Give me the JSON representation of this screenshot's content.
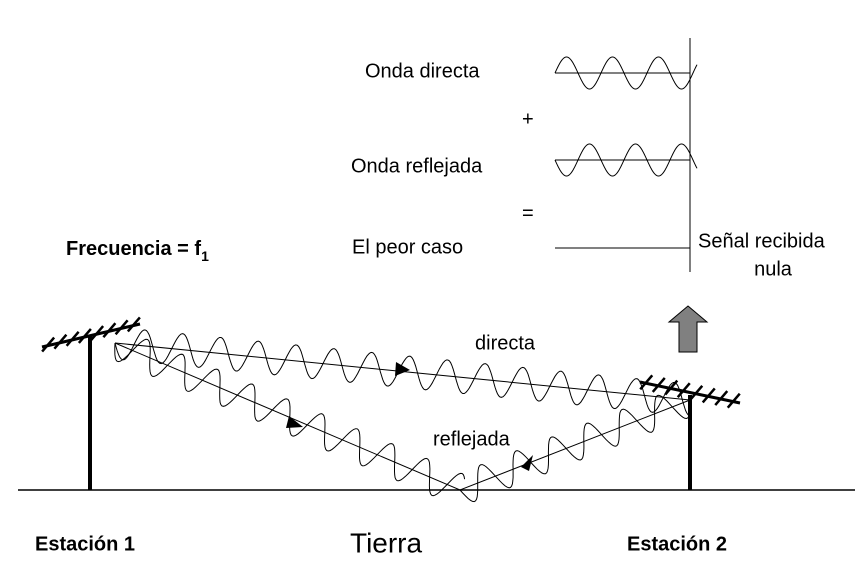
{
  "labels": {
    "direct_wave": "Onda directa",
    "plus": "+",
    "reflected_wave": "Onda reflejada",
    "equals": "=",
    "worst_case": "El peor caso",
    "received_signal": [
      "Señal recibida",
      "nula"
    ],
    "frequency": {
      "label": "Frecuencia = f",
      "subscript": "1"
    },
    "direct_path": "directa",
    "reflected_path": "reflejada",
    "station_1": "Estación 1",
    "ground": "Tierra",
    "station_2": "Estación 2"
  }
}
